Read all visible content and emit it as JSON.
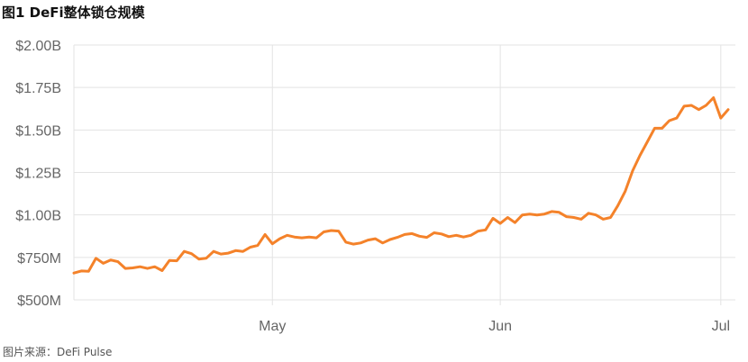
{
  "figure": {
    "title": "图1 DeFi整体锁仓规模",
    "source": "图片来源：DeFi Pulse"
  },
  "colors": {
    "line": "#F4822A",
    "grid": "#E3E3E3",
    "tick_text": "#666666"
  },
  "chart_data": {
    "type": "line",
    "title": "",
    "xlabel": "",
    "ylabel": "",
    "grid": true,
    "x_range": [
      0,
      89
    ],
    "x_ticks": [
      {
        "x": 27,
        "label": "May"
      },
      {
        "x": 58,
        "label": "Jun"
      },
      {
        "x": 88,
        "label": "Jul"
      }
    ],
    "ylim": [
      500,
      2000
    ],
    "y_ticks": [
      {
        "value": 500,
        "label": "$500M"
      },
      {
        "value": 750,
        "label": "$750M"
      },
      {
        "value": 1000,
        "label": "$1.00B"
      },
      {
        "value": 1250,
        "label": "$1.25B"
      },
      {
        "value": 1500,
        "label": "$1.50B"
      },
      {
        "value": 1750,
        "label": "$1.75B"
      },
      {
        "value": 2000,
        "label": "$2.00B"
      }
    ],
    "series": [
      {
        "values": [
          658,
          670,
          668,
          745,
          715,
          735,
          725,
          685,
          688,
          695,
          685,
          695,
          672,
          732,
          730,
          785,
          772,
          740,
          745,
          785,
          770,
          775,
          790,
          785,
          810,
          820,
          885,
          830,
          860,
          880,
          870,
          865,
          870,
          865,
          900,
          908,
          905,
          840,
          828,
          835,
          852,
          860,
          835,
          855,
          868,
          885,
          890,
          875,
          868,
          895,
          888,
          872,
          880,
          870,
          880,
          905,
          912,
          980,
          950,
          985,
          955,
          1000,
          1005,
          1000,
          1005,
          1020,
          1015,
          990,
          985,
          975,
          1010,
          1000,
          975,
          985,
          1055,
          1140,
          1260,
          1350,
          1430,
          1510,
          1510,
          1555,
          1570,
          1640,
          1645,
          1620,
          1645,
          1690,
          1570,
          1620
        ]
      }
    ]
  }
}
